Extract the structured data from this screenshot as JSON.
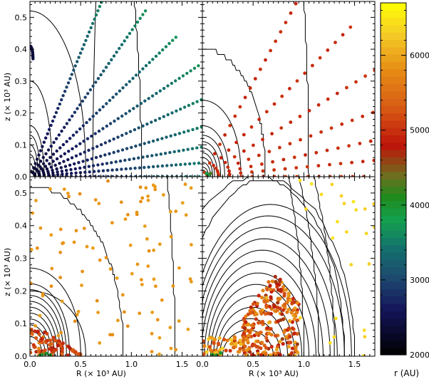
{
  "chart_data": {
    "type": "scatter",
    "panels": [
      {
        "id": "top-left"
      },
      {
        "id": "top-right"
      },
      {
        "id": "bottom-left"
      },
      {
        "id": "bottom-right"
      }
    ],
    "x_axis": {
      "label": "R  (× 10³ AU)",
      "range": [
        0.0,
        1.7
      ],
      "ticks": [
        "0.0",
        "0.5",
        "1.0",
        "1.5"
      ],
      "tick_values": [
        0.0,
        0.5,
        1.0,
        1.5
      ]
    },
    "y_axis": {
      "label": "z  (× 10³ AU)",
      "range": [
        0.0,
        0.55
      ],
      "ticks": [
        "0.0",
        "0.1",
        "0.2",
        "0.3",
        "0.4",
        "0.5"
      ],
      "tick_values": [
        0.0,
        0.1,
        0.2,
        0.3,
        0.4,
        0.5
      ]
    },
    "colorbar": {
      "label": "r (AU)",
      "range": [
        2000,
        6700
      ],
      "ticks": [
        "2000",
        "3000",
        "4000",
        "5000",
        "6000"
      ],
      "tick_values": [
        2000,
        3000,
        4000,
        5000,
        6000
      ]
    },
    "grid": false
  }
}
